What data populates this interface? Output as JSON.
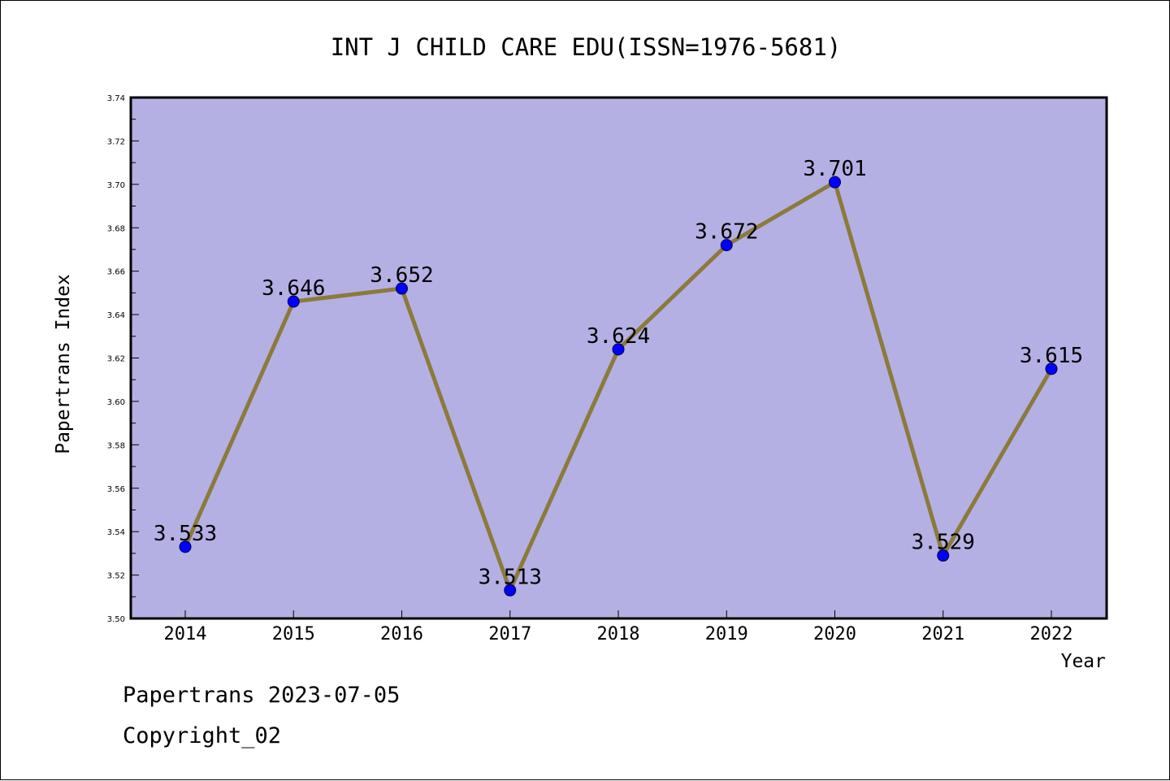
{
  "chart_data": {
    "type": "line",
    "title": "INT J CHILD CARE EDU(ISSN=1976-5681)",
    "xlabel": "Year",
    "ylabel": "Papertrans Index",
    "categories": [
      "2014",
      "2015",
      "2016",
      "2017",
      "2018",
      "2019",
      "2020",
      "2021",
      "2022"
    ],
    "values": [
      3.533,
      3.646,
      3.652,
      3.513,
      3.624,
      3.672,
      3.701,
      3.529,
      3.615
    ],
    "data_labels": [
      "3.533",
      "3.646",
      "3.652",
      "3.513",
      "3.624",
      "3.672",
      "3.701",
      "3.529",
      "3.615"
    ],
    "ylim": [
      3.5,
      3.74
    ],
    "yticks": [
      "3.50",
      "3.52",
      "3.54",
      "3.56",
      "3.58",
      "3.60",
      "3.62",
      "3.64",
      "3.66",
      "3.68",
      "3.70",
      "3.72",
      "3.74"
    ],
    "grid": false,
    "legend": "none",
    "colors": {
      "plot_background": "#b5b0e3",
      "line": "#8c7a3c",
      "marker": "#0000ff"
    }
  },
  "footer": {
    "line1": "Papertrans 2023-07-05",
    "line2": "Copyright_02"
  }
}
